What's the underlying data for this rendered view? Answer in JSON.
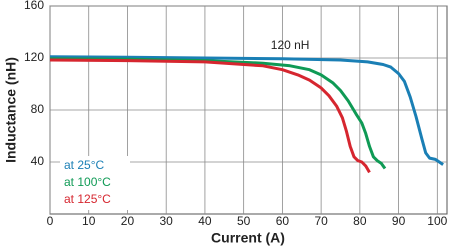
{
  "chart_data": {
    "type": "line",
    "xlabel": "Current (A)",
    "ylabel": "Inductance (nH)",
    "annotation": "120 nH",
    "xlim": [
      0,
      102.5
    ],
    "ylim": [
      0,
      160
    ],
    "xticks": [
      0,
      10,
      20,
      30,
      40,
      50,
      60,
      70,
      80,
      90,
      100
    ],
    "yticks": [
      40,
      80,
      120,
      160
    ],
    "grid": true,
    "legend": "lower left",
    "series": [
      {
        "name": "at 25°C",
        "color": "#1a7fb5",
        "x": [
          0,
          20,
          40,
          60,
          75,
          82,
          86,
          88,
          90,
          91.5,
          93,
          94.5,
          96,
          97,
          98,
          99.5,
          100.5,
          101.5
        ],
        "values": [
          121,
          120.5,
          120,
          119.5,
          118.5,
          117,
          115,
          113,
          108,
          102,
          90,
          75,
          58,
          47,
          43,
          42,
          40,
          38
        ]
      },
      {
        "name": "at 100°C",
        "color": "#0f9a55",
        "x": [
          0,
          20,
          40,
          55,
          62,
          67,
          70,
          73,
          75,
          77,
          79,
          80.5,
          81.5,
          82.5,
          83.5,
          84.5,
          85.5,
          86.5
        ],
        "values": [
          119.5,
          119,
          118,
          116,
          114,
          111,
          107,
          101,
          95,
          87,
          77,
          70,
          62,
          52,
          44,
          41,
          39,
          35
        ]
      },
      {
        "name": "at 125°C",
        "color": "#d6262f",
        "x": [
          0,
          20,
          40,
          55,
          60,
          64,
          67,
          70,
          72,
          74,
          75.5,
          76.5,
          77.5,
          78.5,
          79.5,
          80.5,
          81.5,
          82.5
        ],
        "values": [
          118.5,
          118,
          117,
          114,
          111,
          107,
          103,
          97,
          91,
          83,
          74,
          64,
          52,
          44,
          41,
          40,
          37,
          32
        ]
      }
    ]
  }
}
